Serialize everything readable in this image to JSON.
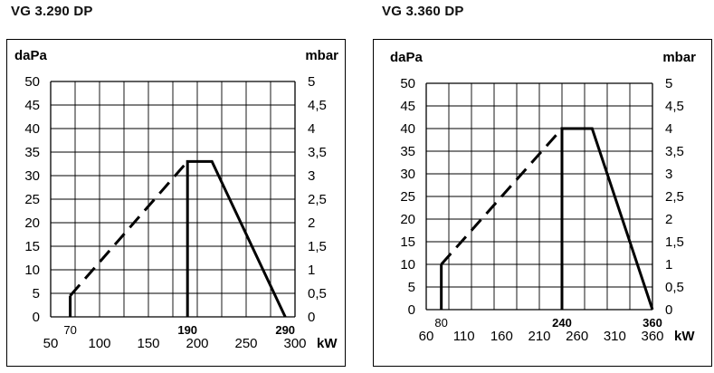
{
  "chart_data": [
    {
      "type": "line",
      "title": "VG 3.290 DP",
      "ylabel_left": "daPa",
      "ylabel_right": "mbar",
      "xlabel": "kW",
      "xlim": [
        50,
        300
      ],
      "ylim": [
        0,
        50
      ],
      "x_ticks": [
        "50",
        "100",
        "150",
        "200",
        "250",
        "300"
      ],
      "y_ticks_left": [
        "0",
        "5",
        "10",
        "15",
        "20",
        "25",
        "30",
        "35",
        "40",
        "45",
        "50"
      ],
      "y_ticks_right": [
        "0",
        "0,5",
        "1",
        "1,5",
        "2",
        "2,5",
        "3",
        "3,5",
        "4",
        "4,5",
        "5"
      ],
      "grid": true,
      "markers": [
        {
          "x": 70,
          "label": "70"
        },
        {
          "x": 190,
          "label": "190"
        },
        {
          "x": 290,
          "label": "290"
        }
      ],
      "dashed_segment": [
        [
          70,
          4.5
        ],
        [
          190,
          33
        ]
      ],
      "solid_segments": [
        [
          [
            70,
            0
          ],
          [
            70,
            4.5
          ]
        ],
        [
          [
            190,
            0
          ],
          [
            190,
            33
          ],
          [
            215,
            33
          ],
          [
            290,
            0
          ]
        ]
      ]
    },
    {
      "type": "line",
      "title": "VG 3.360 DP",
      "ylabel_left": "daPa",
      "ylabel_right": "mbar",
      "xlabel": "kW",
      "xlim": [
        60,
        360
      ],
      "ylim": [
        0,
        50
      ],
      "x_ticks": [
        "60",
        "110",
        "160",
        "210",
        "260",
        "310",
        "360"
      ],
      "y_ticks_left": [
        "0",
        "5",
        "10",
        "15",
        "20",
        "25",
        "30",
        "35",
        "40",
        "45",
        "50"
      ],
      "y_ticks_right": [
        "0",
        "0,5",
        "1",
        "1,5",
        "2",
        "2,5",
        "3",
        "3,5",
        "4",
        "4,5",
        "5"
      ],
      "grid": true,
      "markers": [
        {
          "x": 80,
          "label": "80"
        },
        {
          "x": 240,
          "label": "240"
        },
        {
          "x": 360,
          "label": "360"
        }
      ],
      "dashed_segment": [
        [
          80,
          10
        ],
        [
          240,
          40
        ]
      ],
      "solid_segments": [
        [
          [
            80,
            0
          ],
          [
            80,
            10
          ]
        ],
        [
          [
            240,
            0
          ],
          [
            240,
            40
          ],
          [
            280,
            40
          ],
          [
            360,
            0
          ]
        ]
      ]
    }
  ]
}
